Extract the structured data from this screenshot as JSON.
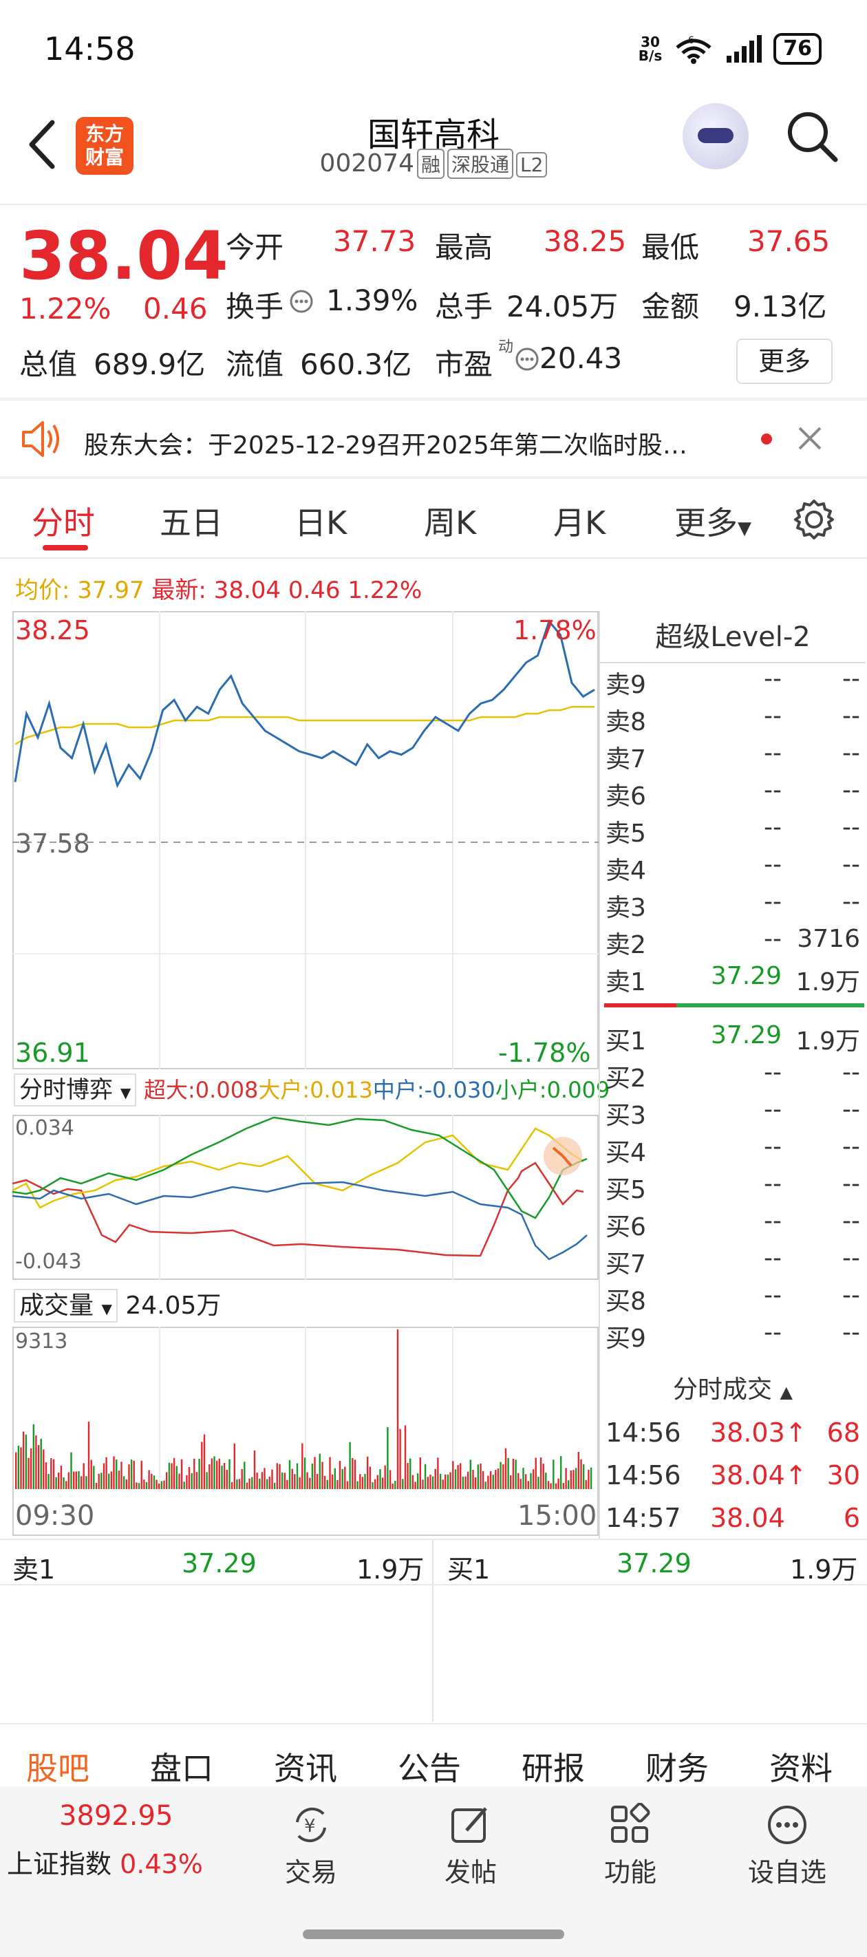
{
  "status": {
    "time": "14:58",
    "netspeed_top": "30",
    "netspeed_bottom": "B/s",
    "net_badge": "6",
    "battery": "76"
  },
  "header": {
    "logo_line1": "东方",
    "logo_line2": "财富",
    "title": "国轩高科",
    "code": "002074",
    "tags": [
      "融",
      "深股通",
      "L2"
    ]
  },
  "quote": {
    "price": "38.04",
    "change_pct": "1.22%",
    "change": "0.46",
    "open_label": "今开",
    "open": "37.73",
    "high_label": "最高",
    "high": "38.25",
    "low_label": "最低",
    "low": "37.65",
    "turnover_label": "换手",
    "turnover": "1.39%",
    "volume_label": "总手",
    "volume": "24.05万",
    "amount_label": "金额",
    "amount": "9.13亿",
    "mktcap_label": "总值",
    "mktcap": "689.9亿",
    "float_label": "流值",
    "float": "660.3亿",
    "pe_label": "市盈",
    "pe_sup": "动",
    "pe": "20.43",
    "more": "更多"
  },
  "notice": {
    "text": "股东大会：于2025-12-29召开2025年第二次临时股…"
  },
  "tabs": [
    "分时",
    "五日",
    "日K",
    "周K",
    "月K",
    "更多"
  ],
  "chart_info": {
    "avg_label": "均价: 37.97",
    "latest_label": "最新: 38.04 0.46 1.22%"
  },
  "chart_data": {
    "type": "line",
    "title": "",
    "y_top": "38.25",
    "y_mid": "37.58",
    "y_bottom": "36.91",
    "pct_top": "1.78%",
    "pct_bottom": "-1.78%",
    "x_start": "09:30",
    "x_end": "15:00",
    "ylim": [
      36.91,
      38.25
    ],
    "prev_close": 37.58,
    "price": [
      37.75,
      37.95,
      37.88,
      37.98,
      37.85,
      37.82,
      37.92,
      37.78,
      37.86,
      37.74,
      37.8,
      37.76,
      37.84,
      37.96,
      37.99,
      37.93,
      37.97,
      37.95,
      38.02,
      38.06,
      37.98,
      37.94,
      37.9,
      37.88,
      37.86,
      37.84,
      37.83,
      37.82,
      37.84,
      37.82,
      37.8,
      37.86,
      37.82,
      37.84,
      37.83,
      37.85,
      37.9,
      37.94,
      37.92,
      37.9,
      37.95,
      37.98,
      37.99,
      38.02,
      38.06,
      38.1,
      38.12,
      38.22,
      38.18,
      38.04,
      38.0,
      38.02
    ],
    "avg": [
      37.86,
      37.88,
      37.89,
      37.9,
      37.91,
      37.91,
      37.92,
      37.92,
      37.92,
      37.92,
      37.91,
      37.91,
      37.91,
      37.92,
      37.93,
      37.93,
      37.93,
      37.93,
      37.94,
      37.94,
      37.94,
      37.94,
      37.94,
      37.94,
      37.94,
      37.93,
      37.93,
      37.93,
      37.93,
      37.93,
      37.93,
      37.93,
      37.93,
      37.93,
      37.93,
      37.93,
      37.93,
      37.93,
      37.93,
      37.93,
      37.93,
      37.94,
      37.94,
      37.94,
      37.94,
      37.95,
      37.95,
      37.96,
      37.96,
      37.97,
      37.97,
      37.97
    ]
  },
  "flow": {
    "select": "分时博弈",
    "super": "超大:0.008",
    "large": "大户:0.013",
    "medium": "中户:-0.030",
    "small": "小户:0.009",
    "y_top": "0.034",
    "y_bottom": "-0.043"
  },
  "volume": {
    "select": "成交量",
    "total": "24.05万",
    "y_top": "9313"
  },
  "level2": {
    "title": "超级Level-2",
    "asks": [
      {
        "label": "卖9",
        "price": "--",
        "vol": "--"
      },
      {
        "label": "卖8",
        "price": "--",
        "vol": "--"
      },
      {
        "label": "卖7",
        "price": "--",
        "vol": "--"
      },
      {
        "label": "卖6",
        "price": "--",
        "vol": "--"
      },
      {
        "label": "卖5",
        "price": "--",
        "vol": "--"
      },
      {
        "label": "卖4",
        "price": "--",
        "vol": "--"
      },
      {
        "label": "卖3",
        "price": "--",
        "vol": "--"
      },
      {
        "label": "卖2",
        "price": "--",
        "vol": "3716"
      },
      {
        "label": "卖1",
        "price": "37.29",
        "vol": "1.9万"
      }
    ],
    "bids": [
      {
        "label": "买1",
        "price": "37.29",
        "vol": "1.9万"
      },
      {
        "label": "买2",
        "price": "--",
        "vol": "--"
      },
      {
        "label": "买3",
        "price": "--",
        "vol": "--"
      },
      {
        "label": "买4",
        "price": "--",
        "vol": "--"
      },
      {
        "label": "买5",
        "price": "--",
        "vol": "--"
      },
      {
        "label": "买6",
        "price": "--",
        "vol": "--"
      },
      {
        "label": "买7",
        "price": "--",
        "vol": "--"
      },
      {
        "label": "买8",
        "price": "--",
        "vol": "--"
      },
      {
        "label": "买9",
        "price": "--",
        "vol": "--"
      }
    ],
    "ticks_title": "分时成交",
    "ticks": [
      {
        "time": "14:56",
        "price": "38.03↑",
        "vol": "68"
      },
      {
        "time": "14:56",
        "price": "38.04↑",
        "vol": "30"
      },
      {
        "time": "14:57",
        "price": "38.04",
        "vol": "6"
      }
    ]
  },
  "bottom_quote": {
    "ask_label": "卖1",
    "ask_price": "37.29",
    "ask_vol": "1.9万",
    "bid_label": "买1",
    "bid_price": "37.29",
    "bid_vol": "1.9万"
  },
  "bottom_tabs": [
    "股吧",
    "盘口",
    "资讯",
    "公告",
    "研报",
    "财务",
    "资料"
  ],
  "index": {
    "value": "3892.95",
    "name": "上证指数",
    "pct": "0.43%"
  },
  "nav": [
    "交易",
    "发帖",
    "功能",
    "设自选"
  ]
}
